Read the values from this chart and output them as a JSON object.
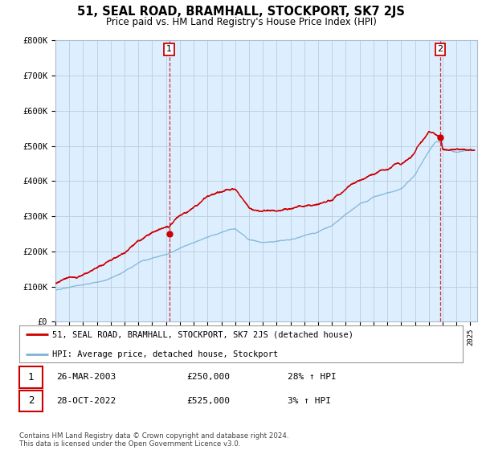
{
  "title": "51, SEAL ROAD, BRAMHALL, STOCKPORT, SK7 2JS",
  "subtitle": "Price paid vs. HM Land Registry's House Price Index (HPI)",
  "ylim": [
    0,
    800000
  ],
  "xlim_start": 1995.0,
  "xlim_end": 2025.5,
  "hpi_color": "#7ab3d4",
  "price_color": "#cc0000",
  "chart_bg": "#ddeeff",
  "sale1_date": 2003.23,
  "sale1_price": 250000,
  "sale1_label": "1",
  "sale2_date": 2022.83,
  "sale2_price": 525000,
  "sale2_label": "2",
  "legend_line1": "51, SEAL ROAD, BRAMHALL, STOCKPORT, SK7 2JS (detached house)",
  "legend_line2": "HPI: Average price, detached house, Stockport",
  "table_row1": [
    "1",
    "26-MAR-2003",
    "£250,000",
    "28% ↑ HPI"
  ],
  "table_row2": [
    "2",
    "28-OCT-2022",
    "£525,000",
    "3% ↑ HPI"
  ],
  "footnote": "Contains HM Land Registry data © Crown copyright and database right 2024.\nThis data is licensed under the Open Government Licence v3.0.",
  "background_color": "#ffffff",
  "grid_color": "#bbccdd"
}
